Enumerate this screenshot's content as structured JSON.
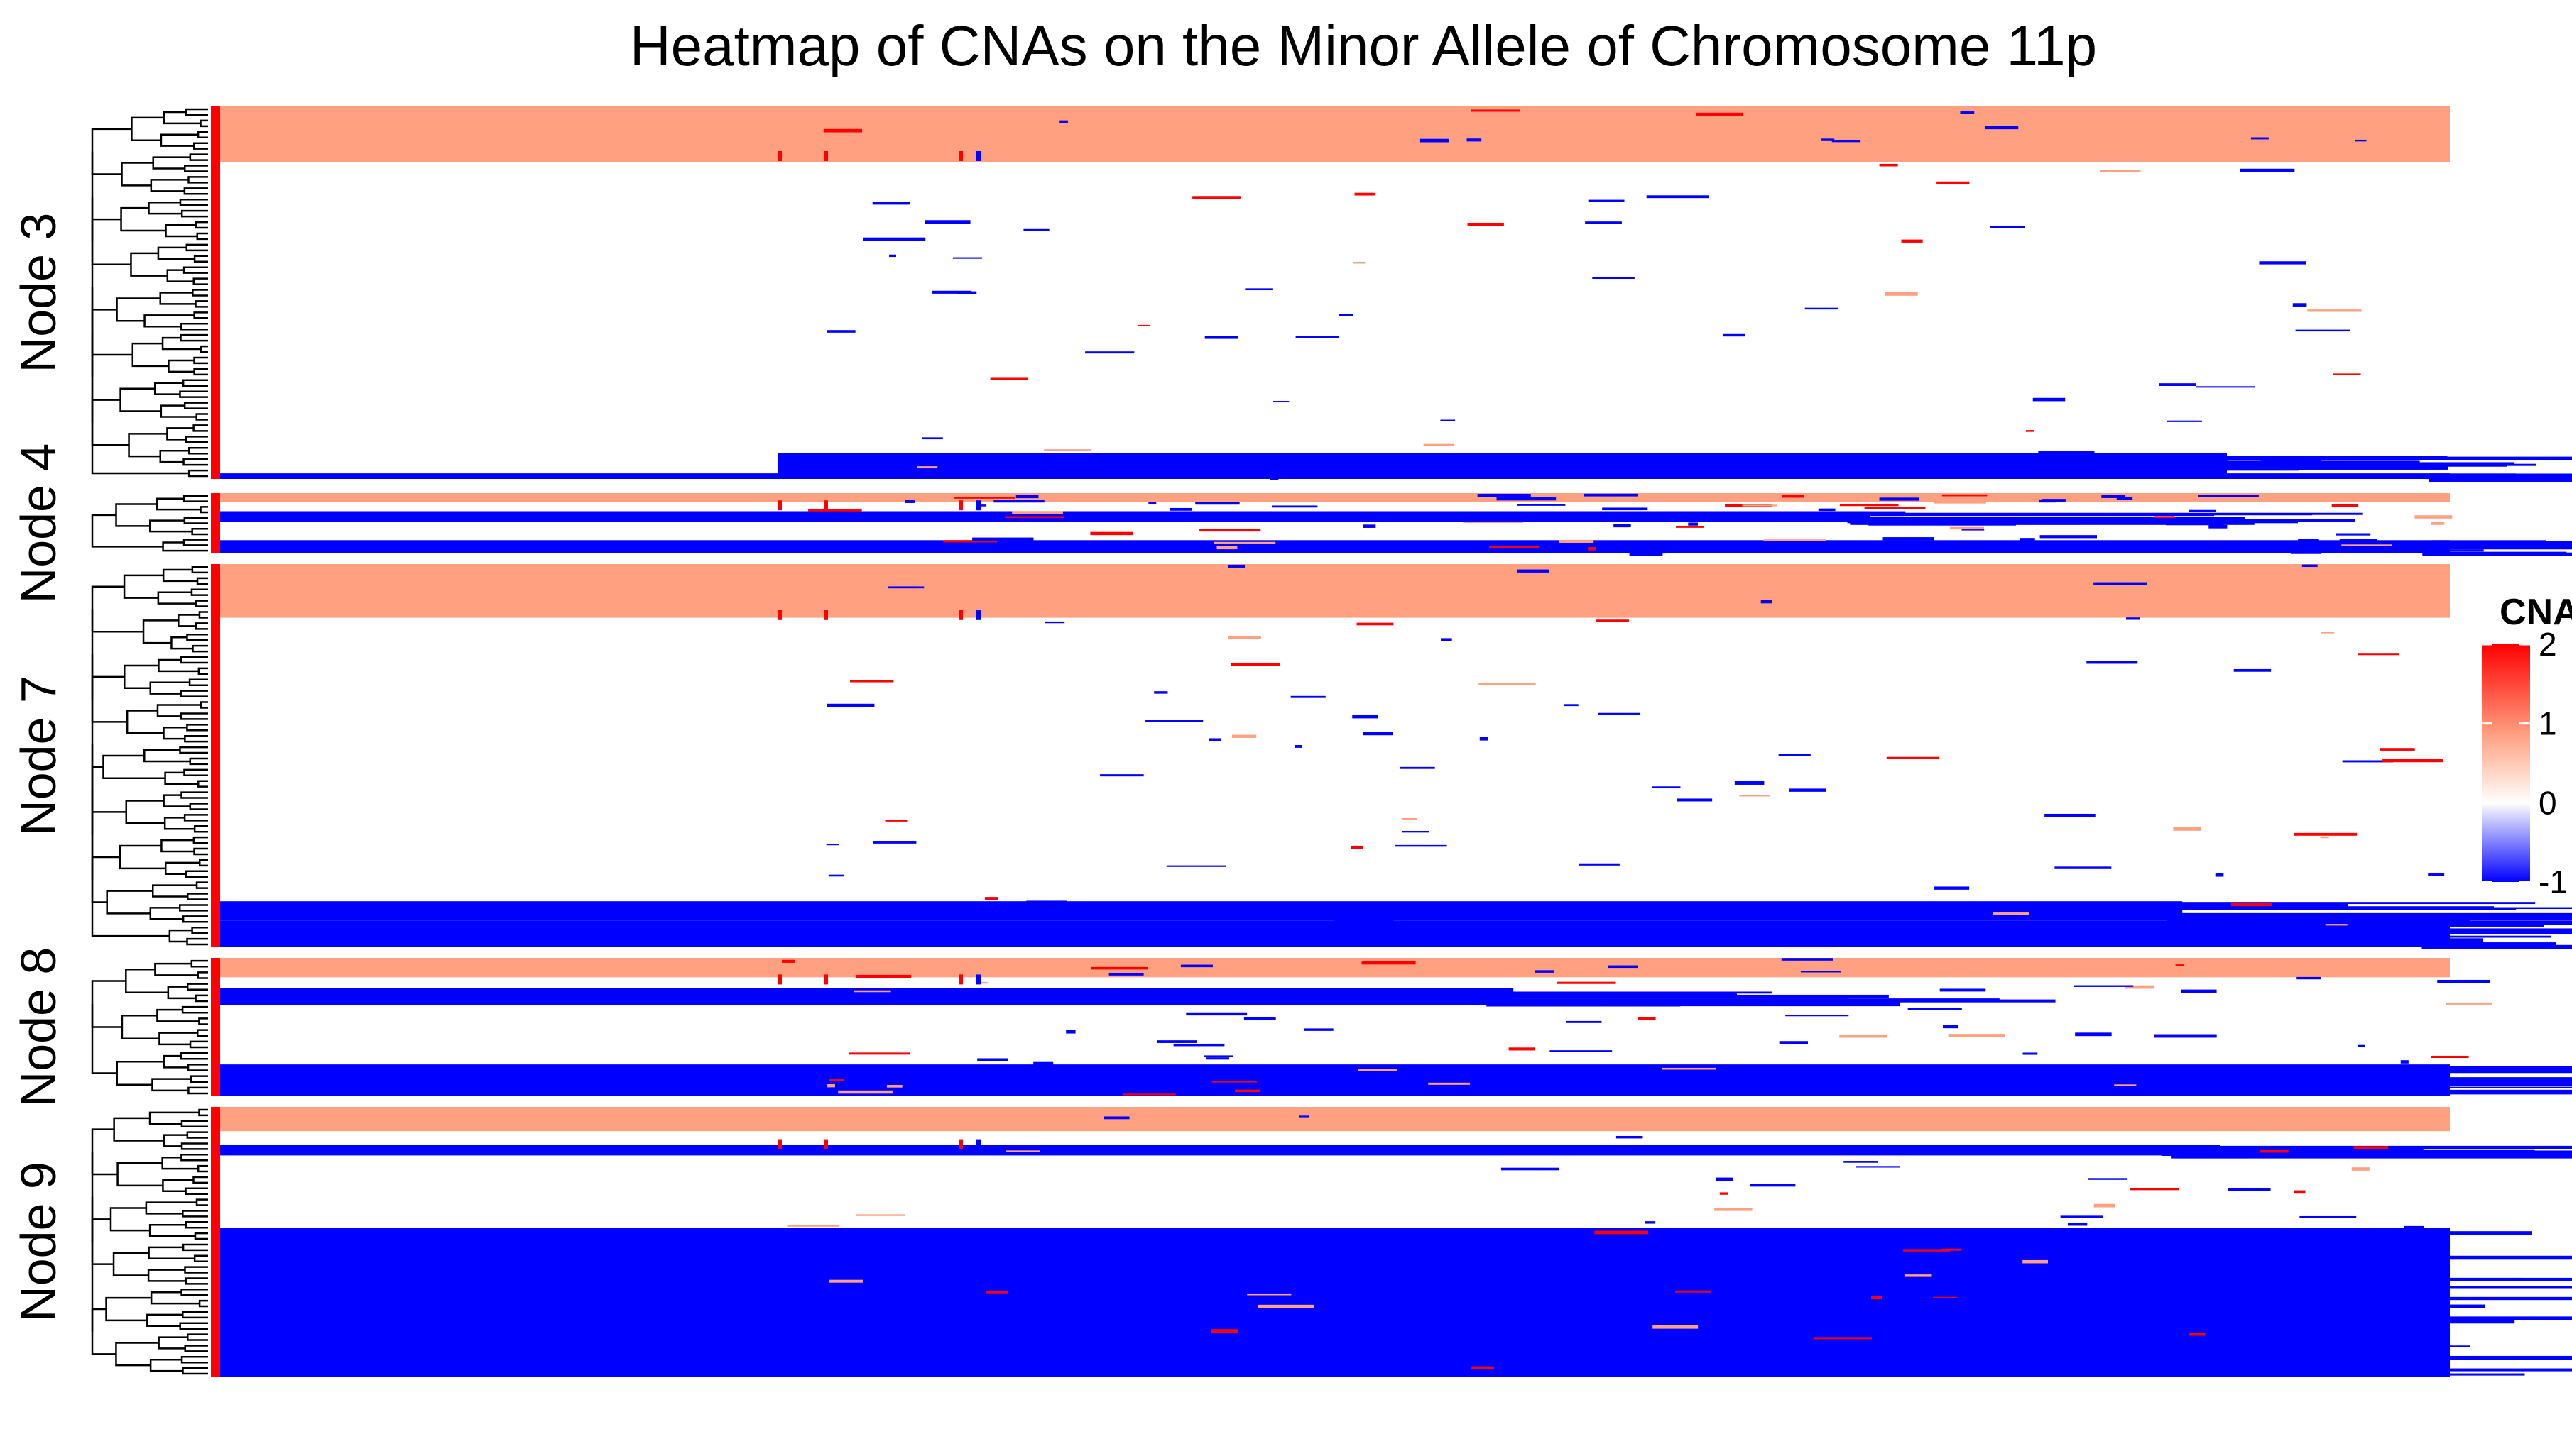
{
  "chart_data": {
    "type": "heatmap",
    "title": "Heatmap of CNAs on the Minor Allele of Chromosome 11p",
    "legend": {
      "title": "CNA",
      "placement": "right",
      "ticks": [
        2,
        1,
        0,
        -1
      ],
      "range": [
        -1,
        2
      ],
      "colors": {
        "neg": "#0000ff",
        "mid": "#ffffff",
        "pos1": "#ffa080",
        "pos2": "#ff0000"
      }
    },
    "row_annotation_color": "#ff0000",
    "panels": [
      {
        "name": "Node 3",
        "bands": [
          {
            "from": 0.0,
            "to": 0.15,
            "value": 1,
            "end": 1.0
          },
          {
            "from": 0.15,
            "to": 0.93,
            "value": 0,
            "end": 1.0
          },
          {
            "from": 0.93,
            "to": 0.99,
            "value": -1,
            "end": 0.9,
            "start": 0.25
          },
          {
            "from": 0.985,
            "to": 1.0,
            "value": -1,
            "end": 1.0
          }
        ]
      },
      {
        "name": "Node 4",
        "bands": [
          {
            "from": 0.0,
            "to": 0.15,
            "value": 1,
            "end": 1.0
          },
          {
            "from": 0.15,
            "to": 0.3,
            "value": 0,
            "end": 1.0
          },
          {
            "from": 0.3,
            "to": 0.48,
            "value": -1,
            "end": 0.74
          },
          {
            "from": 0.48,
            "to": 0.78,
            "value": 0,
            "end": 1.0
          },
          {
            "from": 0.78,
            "to": 1.0,
            "value": -1,
            "end": 1.0
          }
        ]
      },
      {
        "name": "Node 7",
        "bands": [
          {
            "from": 0.0,
            "to": 0.14,
            "value": 1,
            "end": 1.0
          },
          {
            "from": 0.14,
            "to": 0.88,
            "value": 0,
            "end": 1.0
          },
          {
            "from": 0.88,
            "to": 0.93,
            "value": -1,
            "end": 0.88
          },
          {
            "from": 0.93,
            "to": 1.0,
            "value": -1,
            "end": 1.0
          }
        ]
      },
      {
        "name": "Node 8",
        "bands": [
          {
            "from": 0.0,
            "to": 0.14,
            "value": 1,
            "end": 1.0
          },
          {
            "from": 0.14,
            "to": 0.22,
            "value": 0,
            "end": 1.0
          },
          {
            "from": 0.22,
            "to": 0.34,
            "value": -1,
            "end": 0.58
          },
          {
            "from": 0.34,
            "to": 0.77,
            "value": 0,
            "end": 1.0
          },
          {
            "from": 0.77,
            "to": 1.0,
            "value": -1,
            "end": 1.0
          }
        ]
      },
      {
        "name": "Node 9",
        "bands": [
          {
            "from": 0.0,
            "to": 0.09,
            "value": 1,
            "end": 1.0
          },
          {
            "from": 0.09,
            "to": 0.14,
            "value": 0,
            "end": 1.0
          },
          {
            "from": 0.14,
            "to": 0.18,
            "value": -1,
            "end": 0.88
          },
          {
            "from": 0.18,
            "to": 0.45,
            "value": 0,
            "end": 1.0
          },
          {
            "from": 0.45,
            "to": 1.0,
            "value": -1,
            "end": 1.0
          }
        ]
      }
    ]
  }
}
